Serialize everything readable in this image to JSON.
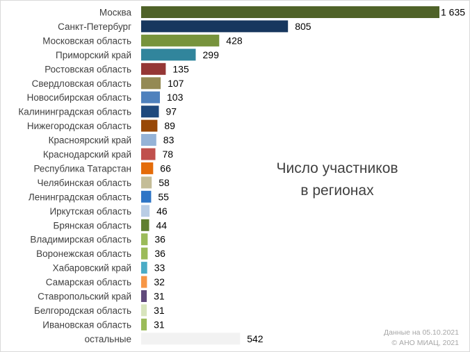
{
  "chart_data": {
    "type": "bar",
    "orientation": "horizontal",
    "title": [
      "Число участников",
      "в регионах"
    ],
    "categories": [
      "Москва",
      "Санкт-Петербург",
      "Московская область",
      "Приморский край",
      "Ростовская область",
      "Свердловская область",
      "Новосибирская область",
      "Калининградская область",
      "Нижегородская область",
      "Красноярский край",
      "Краснодарский край",
      "Республика Татарстан",
      "Челябинская область",
      "Ленинградская область",
      "Иркутская область",
      "Брянская область",
      "Владимирская область",
      "Воронежская область",
      "Хабаровский край",
      "Самарская область",
      "Ставропольский край",
      "Белгородская область",
      "Ивановская область",
      "остальные"
    ],
    "values": [
      1635,
      805,
      428,
      299,
      135,
      107,
      103,
      97,
      89,
      83,
      78,
      66,
      58,
      55,
      46,
      44,
      36,
      36,
      33,
      32,
      31,
      31,
      31,
      542
    ],
    "value_labels": [
      "1 635",
      "805",
      "428",
      "299",
      "135",
      "107",
      "103",
      "97",
      "89",
      "83",
      "78",
      "66",
      "58",
      "55",
      "46",
      "44",
      "36",
      "36",
      "33",
      "32",
      "31",
      "31",
      "31",
      "542"
    ],
    "colors": [
      "#4f6228",
      "#17375e",
      "#77933c",
      "#31859c",
      "#953735",
      "#948a54",
      "#4f81bd",
      "#1f497d",
      "#984807",
      "#95b3d7",
      "#c0504d",
      "#e46c0a",
      "#c4bd97",
      "#2e75c6",
      "#b9cde5",
      "#5f7f2f",
      "#9bbb59",
      "#9bbb59",
      "#4bacc6",
      "#f79646",
      "#604a7b",
      "#d7e4bc",
      "#9bbb59",
      "#f2f2f2"
    ],
    "axes_visible": false,
    "grid": false,
    "legend": "none"
  },
  "footnote": {
    "line1": "Данные на 05.10.2021",
    "line2": "© АНО МИАЦ, 2021"
  }
}
